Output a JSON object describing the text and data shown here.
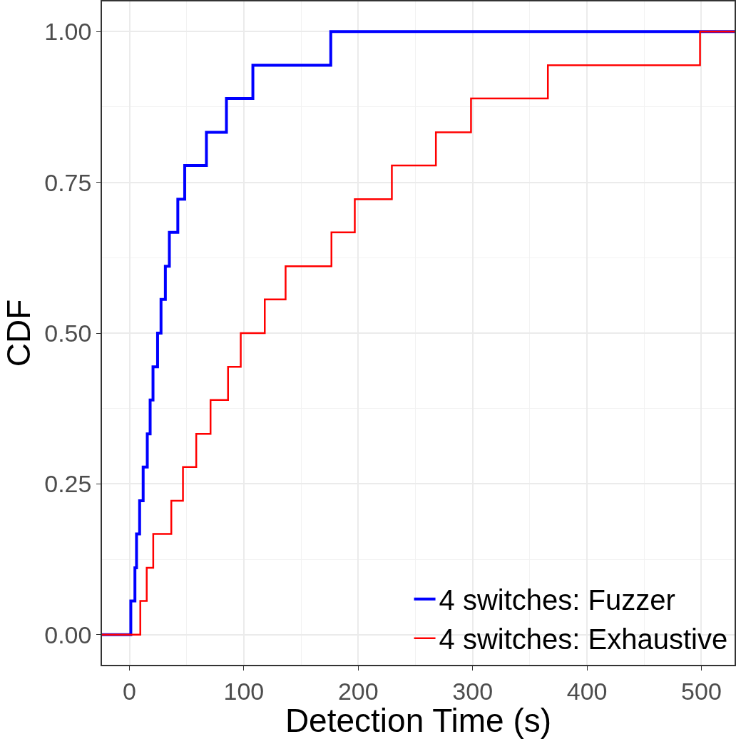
{
  "chart_data": {
    "type": "step",
    "xlabel": "Detection Time (s)",
    "ylabel": "CDF",
    "xlim": [
      -24,
      529
    ],
    "ylim": [
      -0.05,
      1.05
    ],
    "xticks": [
      0,
      100,
      200,
      300,
      400,
      500
    ],
    "yticks": [
      {
        "value": 0,
        "label": "0.00"
      },
      {
        "value": 0.25,
        "label": "0.25"
      },
      {
        "value": 0.5,
        "label": "0.50"
      },
      {
        "value": 0.75,
        "label": "0.75"
      },
      {
        "value": 1,
        "label": "1.00"
      }
    ],
    "grid": true,
    "legend": "bottom right",
    "marker": "none",
    "line_style": "solid",
    "series": [
      {
        "name": "4 switches: Fuzzer",
        "color": "#0000ff",
        "x": [
          -24,
          1.2,
          4.8,
          6.2,
          8.9,
          12.0,
          15.6,
          18.1,
          20.6,
          24.6,
          27.6,
          31.4,
          34.9,
          42.3,
          48.3,
          67.3,
          84.8,
          107.9,
          176.0,
          529
        ],
        "values": [
          0,
          0.056,
          0.111,
          0.167,
          0.222,
          0.278,
          0.333,
          0.389,
          0.444,
          0.5,
          0.556,
          0.611,
          0.667,
          0.722,
          0.778,
          0.833,
          0.889,
          0.944,
          1,
          1
        ]
      },
      {
        "name": "4 switches: Exhaustive",
        "color": "#ff0000",
        "x": [
          -24,
          9.5,
          15.1,
          20.8,
          36.6,
          46.8,
          58.4,
          70.9,
          86.2,
          97.3,
          118.3,
          136.5,
          176.6,
          197.0,
          229.4,
          267.9,
          298.6,
          365.8,
          498.8,
          529
        ],
        "values": [
          0,
          0.056,
          0.111,
          0.167,
          0.222,
          0.278,
          0.333,
          0.389,
          0.444,
          0.5,
          0.556,
          0.611,
          0.667,
          0.722,
          0.778,
          0.833,
          0.889,
          0.944,
          1,
          1
        ]
      }
    ]
  }
}
